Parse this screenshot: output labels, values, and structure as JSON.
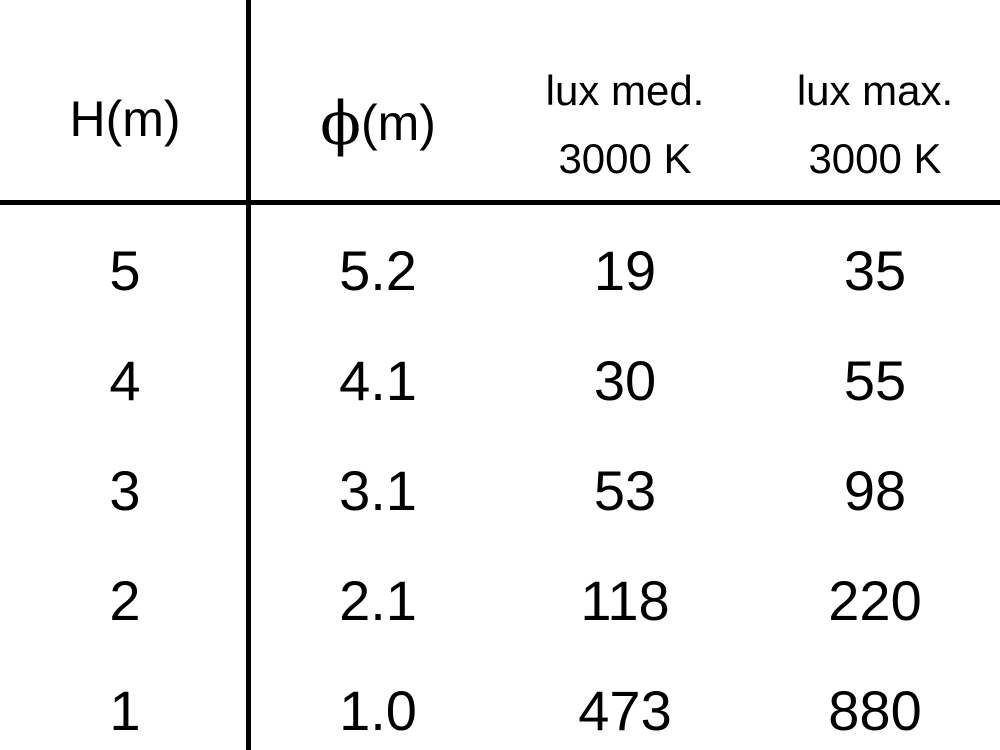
{
  "table": {
    "headers": [
      {
        "text": "H(m)"
      },
      {
        "symbol": "ϕ",
        "text": "(m)"
      },
      {
        "line1": "lux med.",
        "line2": "3000 K"
      },
      {
        "line1": "lux max.",
        "line2": "3000 K"
      }
    ],
    "rows": [
      [
        "5",
        "5.2",
        "19",
        "35"
      ],
      [
        "4",
        "4.1",
        "30",
        "55"
      ],
      [
        "3",
        "3.1",
        "53",
        "98"
      ],
      [
        "2",
        "2.1",
        "118",
        "220"
      ],
      [
        "1",
        "1.0",
        "473",
        "880"
      ]
    ]
  }
}
